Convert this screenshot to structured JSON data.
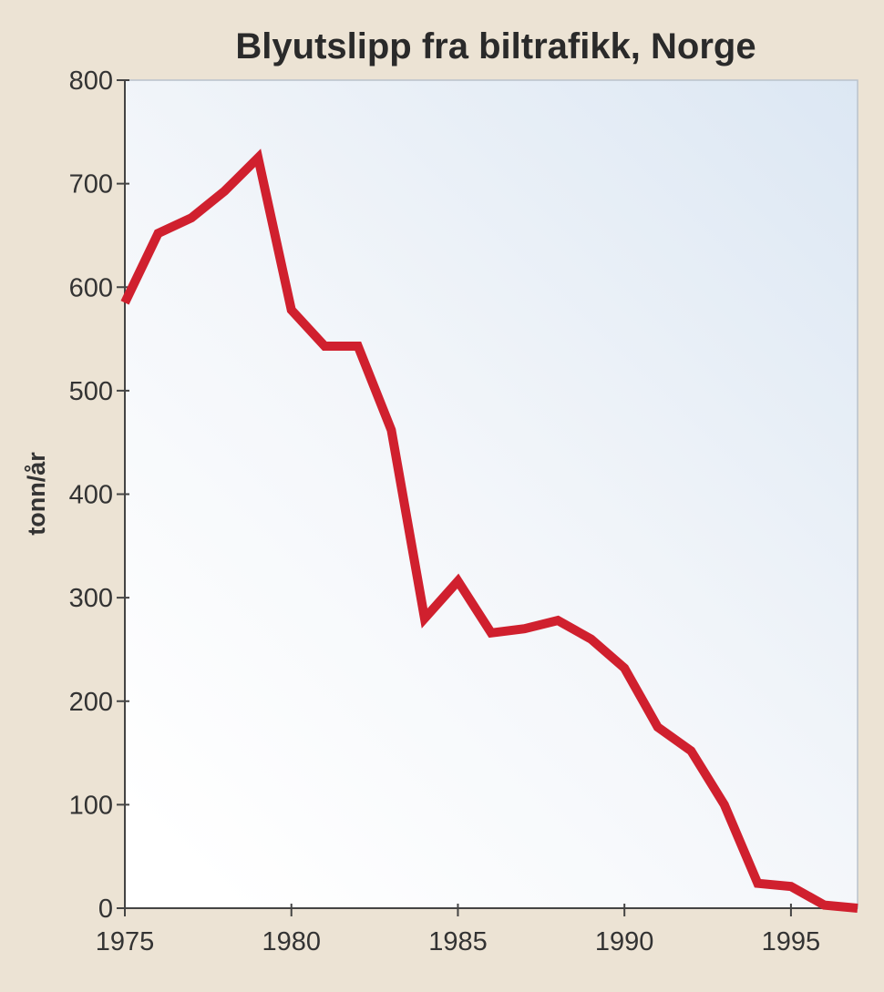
{
  "chart_data": {
    "type": "line",
    "title": "Blyutslipp fra biltrafikk, Norge",
    "xlabel": "",
    "ylabel": "tonn/år",
    "xlim": [
      1975,
      1997
    ],
    "ylim": [
      0,
      800
    ],
    "x_ticks": [
      1975,
      1980,
      1985,
      1990,
      1995
    ],
    "y_ticks": [
      0,
      100,
      200,
      300,
      400,
      500,
      600,
      700,
      800
    ],
    "grid": false,
    "series": [
      {
        "color": "#d0202e",
        "points": [
          {
            "x": 1975,
            "y": 585
          },
          {
            "x": 1976,
            "y": 652
          },
          {
            "x": 1977,
            "y": 667
          },
          {
            "x": 1978,
            "y": 693
          },
          {
            "x": 1979,
            "y": 725
          },
          {
            "x": 1980,
            "y": 578
          },
          {
            "x": 1981,
            "y": 543
          },
          {
            "x": 1982,
            "y": 543
          },
          {
            "x": 1983,
            "y": 462
          },
          {
            "x": 1984,
            "y": 280
          },
          {
            "x": 1985,
            "y": 316
          },
          {
            "x": 1986,
            "y": 266
          },
          {
            "x": 1987,
            "y": 270
          },
          {
            "x": 1988,
            "y": 278
          },
          {
            "x": 1989,
            "y": 260
          },
          {
            "x": 1990,
            "y": 232
          },
          {
            "x": 1991,
            "y": 175
          },
          {
            "x": 1992,
            "y": 152
          },
          {
            "x": 1993,
            "y": 100
          },
          {
            "x": 1994,
            "y": 24
          },
          {
            "x": 1995,
            "y": 21
          },
          {
            "x": 1996,
            "y": 3
          },
          {
            "x": 1997,
            "y": 0
          }
        ]
      }
    ]
  }
}
